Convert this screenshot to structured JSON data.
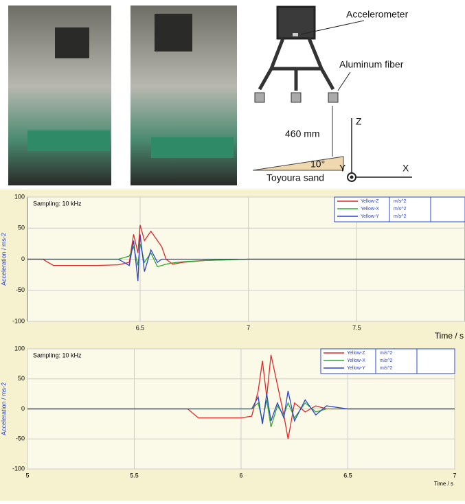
{
  "diagram": {
    "accelerometer": "Accelerometer",
    "fiber": "Aluminum fiber",
    "height": "460 mm",
    "angle": "10°",
    "sand": "Toyoura sand",
    "axis_z": "Z",
    "axis_y": "Y",
    "axis_x": "X"
  },
  "chart_data": [
    {
      "type": "line",
      "annotation": "Sampling: 10 kHz",
      "xlabel": "Time / s",
      "ylabel": "Acceleration / ms-2",
      "unit": "m/s^2",
      "x": [
        5.98,
        6.05,
        6.1,
        6.2,
        6.3,
        6.4,
        6.45,
        6.47,
        6.49,
        6.5,
        6.52,
        6.55,
        6.58,
        6.6,
        6.62,
        6.65,
        6.7,
        6.8,
        7.0,
        7.2,
        7.4,
        7.6,
        7.8,
        8.0
      ],
      "series": [
        {
          "name": "Yellow-Z",
          "color": "#e02828",
          "values": [
            0,
            0,
            -10,
            -10,
            -10,
            -9,
            -5,
            40,
            10,
            55,
            30,
            45,
            30,
            20,
            0,
            -8,
            -5,
            -2,
            0,
            0,
            0,
            0,
            0,
            0
          ]
        },
        {
          "name": "Yellow-X",
          "color": "#30a830",
          "values": [
            0,
            0,
            0,
            0,
            0,
            0,
            5,
            20,
            -10,
            25,
            -5,
            10,
            -12,
            -10,
            -8,
            -6,
            -4,
            -2,
            0,
            0,
            0,
            0,
            0,
            0
          ]
        },
        {
          "name": "Yellow-Y",
          "color": "#2a44d0",
          "values": [
            0,
            0,
            0,
            0,
            0,
            0,
            -10,
            30,
            -35,
            40,
            -20,
            15,
            -5,
            0,
            0,
            0,
            0,
            0,
            0,
            0,
            0,
            0,
            0,
            0
          ]
        }
      ],
      "xlim": [
        5.98,
        8.0
      ],
      "xticks": [
        6.5,
        7,
        7.5
      ],
      "ylim": [
        -100,
        100
      ],
      "yticks": [
        -100,
        -50,
        0,
        50,
        100
      ],
      "grid": true
    },
    {
      "type": "line",
      "annotation": "Sampling: 10 kHz",
      "xlabel": "Time / s",
      "ylabel": "Acceleration / ms-2",
      "unit": "m/s^2",
      "x": [
        5,
        5.3,
        5.6,
        5.75,
        5.8,
        6.0,
        6.05,
        6.08,
        6.1,
        6.12,
        6.14,
        6.17,
        6.2,
        6.22,
        6.25,
        6.3,
        6.35,
        6.4,
        6.5,
        6.6,
        6.8,
        7.0
      ],
      "series": [
        {
          "name": "Yellow-Z",
          "color": "#e02828",
          "values": [
            0,
            0,
            0,
            0,
            -15,
            -15,
            -12,
            30,
            80,
            20,
            90,
            40,
            -10,
            -50,
            10,
            -5,
            5,
            0,
            0,
            0,
            0,
            0
          ]
        },
        {
          "name": "Yellow-X",
          "color": "#30a830",
          "values": [
            0,
            0,
            0,
            0,
            0,
            0,
            0,
            10,
            -20,
            15,
            -30,
            5,
            -10,
            10,
            -15,
            10,
            -5,
            0,
            0,
            0,
            0,
            0
          ]
        },
        {
          "name": "Yellow-Y",
          "color": "#2a44d0",
          "values": [
            0,
            0,
            0,
            0,
            0,
            0,
            0,
            20,
            -25,
            25,
            -20,
            10,
            -15,
            30,
            -20,
            15,
            -10,
            5,
            0,
            0,
            0,
            0
          ]
        }
      ],
      "xlim": [
        5,
        7
      ],
      "xticks": [
        5,
        5.5,
        6,
        6.5,
        7
      ],
      "ylim": [
        -100,
        100
      ],
      "yticks": [
        -100,
        -50,
        0,
        50,
        100
      ],
      "grid": true
    }
  ]
}
